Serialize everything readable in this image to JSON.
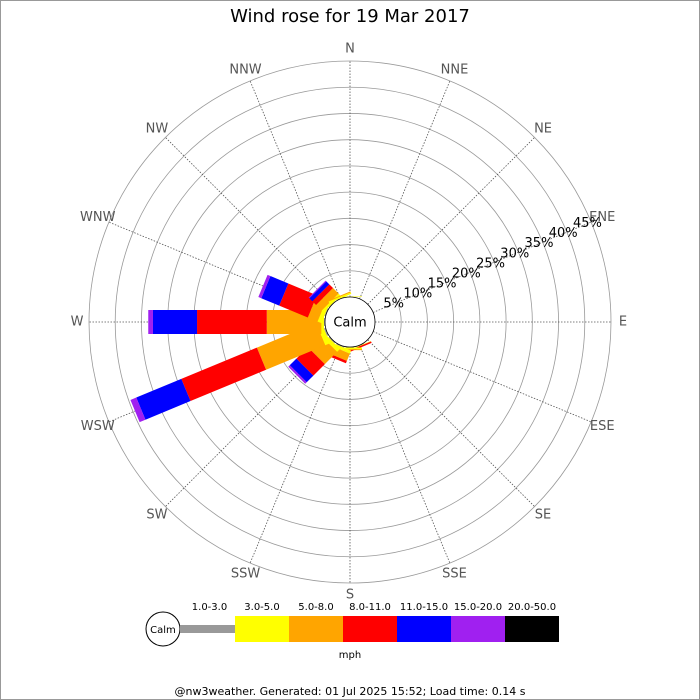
{
  "chart_data": {
    "type": "windrose",
    "title": "Wind rose for 19 Mar 2017",
    "directions": [
      "N",
      "NNE",
      "NE",
      "ENE",
      "E",
      "ESE",
      "SE",
      "SSE",
      "S",
      "SSW",
      "SW",
      "WSW",
      "W",
      "WNW",
      "NW",
      "NNW"
    ],
    "series": [
      {
        "name": "1.0-3.0",
        "color": "#999999",
        "values": [
          0,
          0,
          0,
          0,
          0,
          0,
          0,
          0.1,
          0.1,
          0.2,
          0.2,
          0.3,
          0.2,
          0.2,
          0.1,
          0.1
        ]
      },
      {
        "name": "3.0-5.0",
        "color": "#ffff00",
        "values": [
          0.1,
          0,
          0,
          0,
          0,
          0,
          0,
          0.1,
          0.3,
          0.6,
          0.8,
          1.0,
          0.5,
          0.8,
          0.5,
          0.3
        ]
      },
      {
        "name": "5.0-8.0",
        "color": "#ffa500",
        "values": [
          0,
          0,
          0,
          0,
          0,
          0,
          0,
          0,
          0.2,
          1.5,
          3.3,
          12.2,
          10.4,
          2.0,
          1.5,
          0.2
        ]
      },
      {
        "name": "8.0-11.0",
        "color": "#ff0000",
        "values": [
          0,
          0,
          0,
          0,
          0,
          0,
          0,
          0.3,
          0,
          0.5,
          3.1,
          15.6,
          13.3,
          5.9,
          1.0,
          0
        ]
      },
      {
        "name": "11.0-15.0",
        "color": "#0000ff",
        "values": [
          0,
          0,
          0,
          0,
          0,
          0,
          0,
          0,
          0,
          0,
          1.8,
          9.3,
          8.4,
          3.7,
          0.8,
          0
        ]
      },
      {
        "name": "15.0-20.0",
        "color": "#a020f0",
        "values": [
          0,
          0,
          0,
          0,
          0,
          0,
          0,
          0,
          0,
          0,
          0.4,
          1.2,
          0.9,
          0.6,
          0.2,
          0
        ]
      },
      {
        "name": "20.0-50.0",
        "color": "#000000",
        "values": [
          0,
          0,
          0,
          0,
          0,
          0,
          0,
          0,
          0,
          0,
          0,
          0,
          0,
          0,
          0,
          0
        ]
      }
    ],
    "ylim": [
      0,
      45
    ],
    "yticks": [
      {
        "value": 5,
        "label": "5%"
      },
      {
        "value": 10,
        "label": "10%"
      },
      {
        "value": 15,
        "label": "15%"
      },
      {
        "value": 20,
        "label": "20%"
      },
      {
        "value": 25,
        "label": "25%"
      },
      {
        "value": 30,
        "label": "30%"
      },
      {
        "value": 35,
        "label": "35%"
      },
      {
        "value": 40,
        "label": "40%"
      },
      {
        "value": 45,
        "label": "45%"
      }
    ],
    "calm_label": "Calm",
    "unit": "mph"
  },
  "footer": "@nw3weather. Generated: 01 Jul 2025 15:52; Load time: 0.14 s"
}
